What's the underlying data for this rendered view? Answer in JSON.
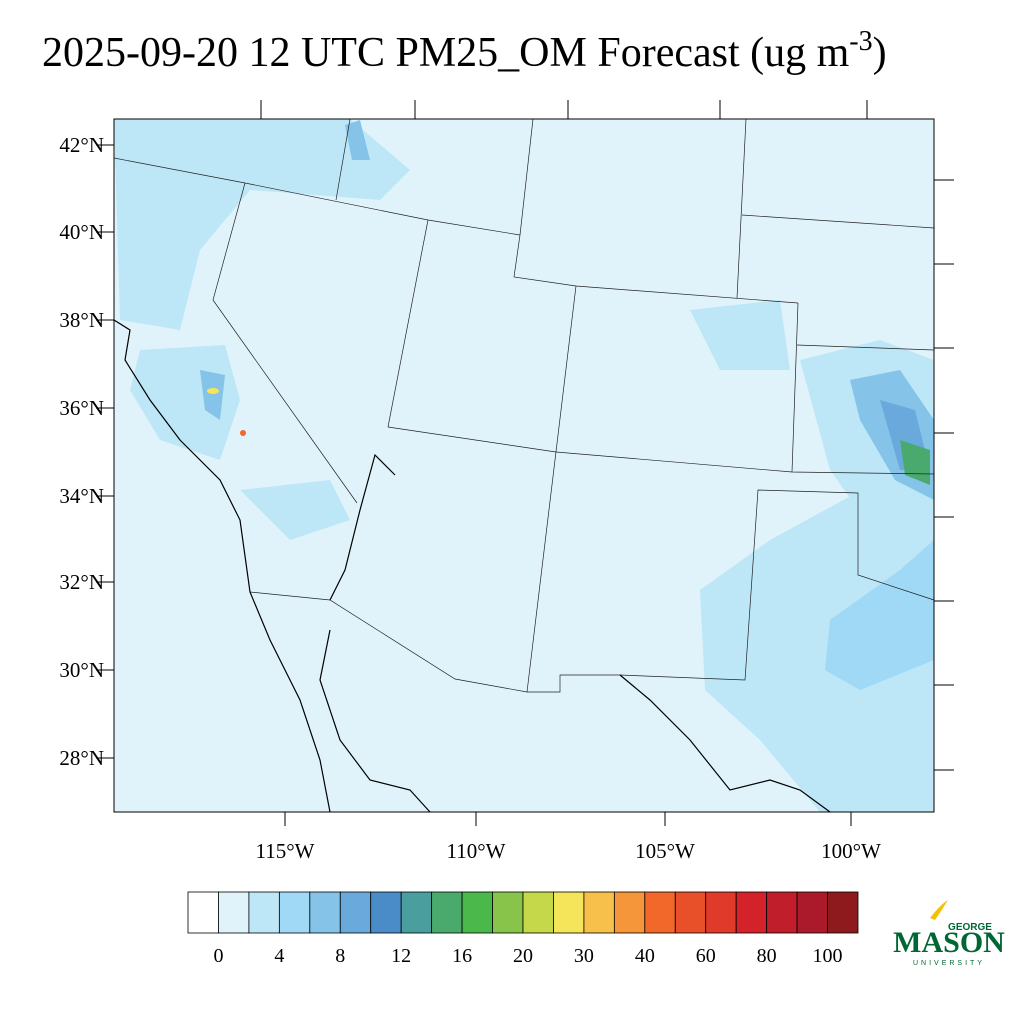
{
  "title": "2025-09-20 12 UTC PM25_OM Forecast (ug m",
  "title_sup": "-3",
  "title_end": ")",
  "lat_labels": [
    "42°N",
    "40°N",
    "38°N",
    "36°N",
    "34°N",
    "32°N",
    "30°N",
    "28°N"
  ],
  "lon_labels": [
    "115°W",
    "110°W",
    "105°W",
    "100°W"
  ],
  "colorbar": {
    "colors": [
      "#ffffff",
      "#e0f3fb",
      "#bde6f7",
      "#9fd9f5",
      "#85c4e8",
      "#6aa9dc",
      "#4a8cc8",
      "#4a9e9e",
      "#4aaa6e",
      "#4ab84a",
      "#88c44a",
      "#c4d84a",
      "#f5e55a",
      "#f7c04a",
      "#f5963a",
      "#f2682a",
      "#e8502a",
      "#e03a2a",
      "#d4222a",
      "#bf1e2a",
      "#aa1a2a",
      "#8e1a1e"
    ],
    "labels": [
      0,
      4,
      8,
      12,
      16,
      20,
      30,
      40,
      60,
      80,
      100
    ]
  },
  "logo": {
    "top": "GEORGE",
    "main": "MASON",
    "bottom": "UNIVERSITY"
  }
}
